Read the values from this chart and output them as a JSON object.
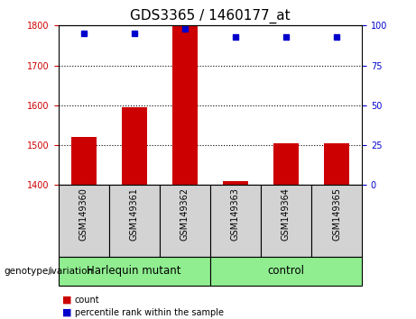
{
  "title": "GDS3365 / 1460177_at",
  "samples": [
    "GSM149360",
    "GSM149361",
    "GSM149362",
    "GSM149363",
    "GSM149364",
    "GSM149365"
  ],
  "counts": [
    1520,
    1595,
    1800,
    1410,
    1505,
    1505
  ],
  "percentiles": [
    95,
    95,
    98,
    93,
    93,
    93
  ],
  "ylim_left": [
    1400,
    1800
  ],
  "ylim_right": [
    0,
    100
  ],
  "yticks_left": [
    1400,
    1500,
    1600,
    1700,
    1800
  ],
  "yticks_right": [
    0,
    25,
    50,
    75,
    100
  ],
  "bar_color": "#cc0000",
  "dot_color": "#0000cc",
  "grid_color": "#000000",
  "groups": [
    {
      "label": "Harlequin mutant",
      "indices": [
        0,
        1,
        2
      ],
      "color": "#90ee90"
    },
    {
      "label": "control",
      "indices": [
        3,
        4,
        5
      ],
      "color": "#90ee90"
    }
  ],
  "xlabel_group": "genotype/variation",
  "legend_count_label": "count",
  "legend_percentile_label": "percentile rank within the sample",
  "bar_width": 0.5,
  "tick_label_fontsize": 7,
  "title_fontsize": 11,
  "group_label_fontsize": 8.5,
  "axis_label_color_left": "#cc0000",
  "axis_label_color_right": "#0000cc",
  "background_plot": "#ffffff",
  "background_xtick": "#d3d3d3",
  "sample_label_fontsize": 7
}
